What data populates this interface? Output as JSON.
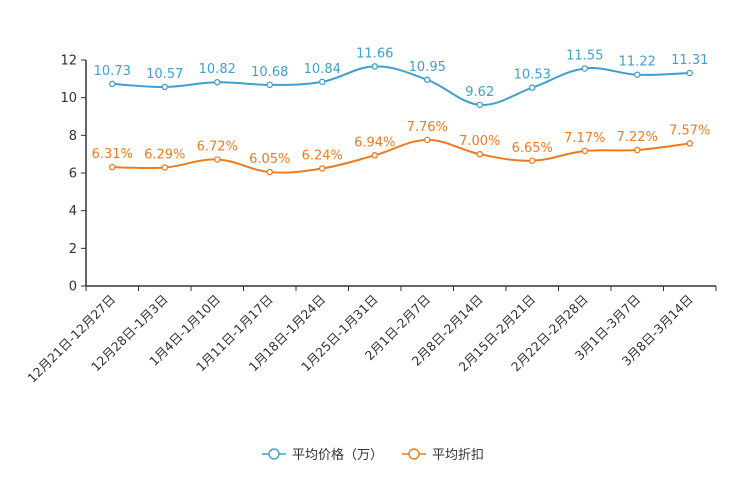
{
  "chart_data": {
    "type": "line",
    "title": "",
    "xlabel": "",
    "ylabel": "",
    "ylim": [
      0,
      12
    ],
    "yticks": [
      0,
      2,
      4,
      6,
      8,
      10,
      12
    ],
    "ytick_labels": [
      "0",
      "2",
      "4",
      "6",
      "8",
      "10",
      "12"
    ],
    "grid": false,
    "legend_position": "bottom-center",
    "categories": [
      "12月21日-12月27日",
      "12月28日-1月3日",
      "1月4日-1月10日",
      "1月11日-1月17日",
      "1月18日-1月24日",
      "1月25日-1月31日",
      "2月1日-2月7日",
      "2月8日-2月14日",
      "2月15日-2月21日",
      "2月22日-2月28日",
      "3月1日-3月7日",
      "3月8日-3月14日"
    ],
    "series": [
      {
        "name": "平均价格（万）",
        "color": "#3fa0cf",
        "values": [
          10.73,
          10.57,
          10.82,
          10.68,
          10.84,
          11.66,
          10.95,
          9.62,
          10.53,
          11.55,
          11.22,
          11.31
        ],
        "labels": [
          "10.73",
          "10.57",
          "10.82",
          "10.68",
          "10.84",
          "11.66",
          "10.95",
          "9.62",
          "10.53",
          "11.55",
          "11.22",
          "11.31"
        ]
      },
      {
        "name": "平均折扣",
        "color": "#f07b1e",
        "values": [
          6.31,
          6.29,
          6.72,
          6.05,
          6.24,
          6.94,
          7.76,
          7.0,
          6.65,
          7.17,
          7.22,
          7.57
        ],
        "labels": [
          "6.31%",
          "6.29%",
          "6.72%",
          "6.05%",
          "6.24%",
          "6.94%",
          "7.76%",
          "7.00%",
          "6.65%",
          "7.17%",
          "7.22%",
          "7.57%"
        ]
      }
    ]
  }
}
